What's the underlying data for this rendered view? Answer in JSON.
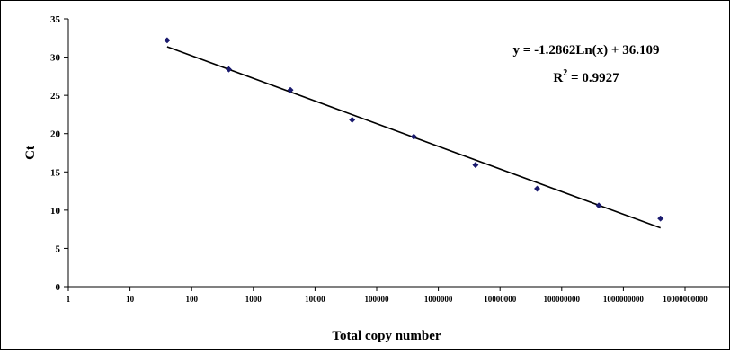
{
  "chart_data": {
    "type": "scatter",
    "title": "",
    "xlabel": "Total copy number",
    "ylabel": "Ct",
    "x_scale": "log10",
    "xlim": [
      1,
      10000000000
    ],
    "ylim": [
      0,
      35
    ],
    "x_ticks": [
      "1",
      "10",
      "100",
      "1000",
      "10000",
      "100000",
      "1000000",
      "10000000",
      "100000000",
      "1000000000",
      "10000000000"
    ],
    "y_ticks": [
      "0",
      "5",
      "10",
      "15",
      "20",
      "25",
      "30",
      "35"
    ],
    "grid": false,
    "legend": "none",
    "marker_color": "#1a1a6e",
    "series": [
      {
        "x": [
          40,
          400,
          4000,
          40000,
          400000,
          4000000,
          40000000,
          400000000,
          4000000000
        ],
        "y": [
          32.2,
          28.4,
          25.7,
          21.8,
          19.6,
          15.9,
          12.8,
          10.6,
          8.9
        ]
      }
    ],
    "trendline": {
      "type": "logarithmic",
      "slope": -1.2862,
      "intercept": 36.109,
      "x_range": [
        40,
        4000000000
      ],
      "equation_text": "y = -1.2862Ln(x) + 36.109",
      "r2_prefix": "R",
      "r2_power": "2",
      "r2_value_text": " = 0.9927"
    }
  }
}
